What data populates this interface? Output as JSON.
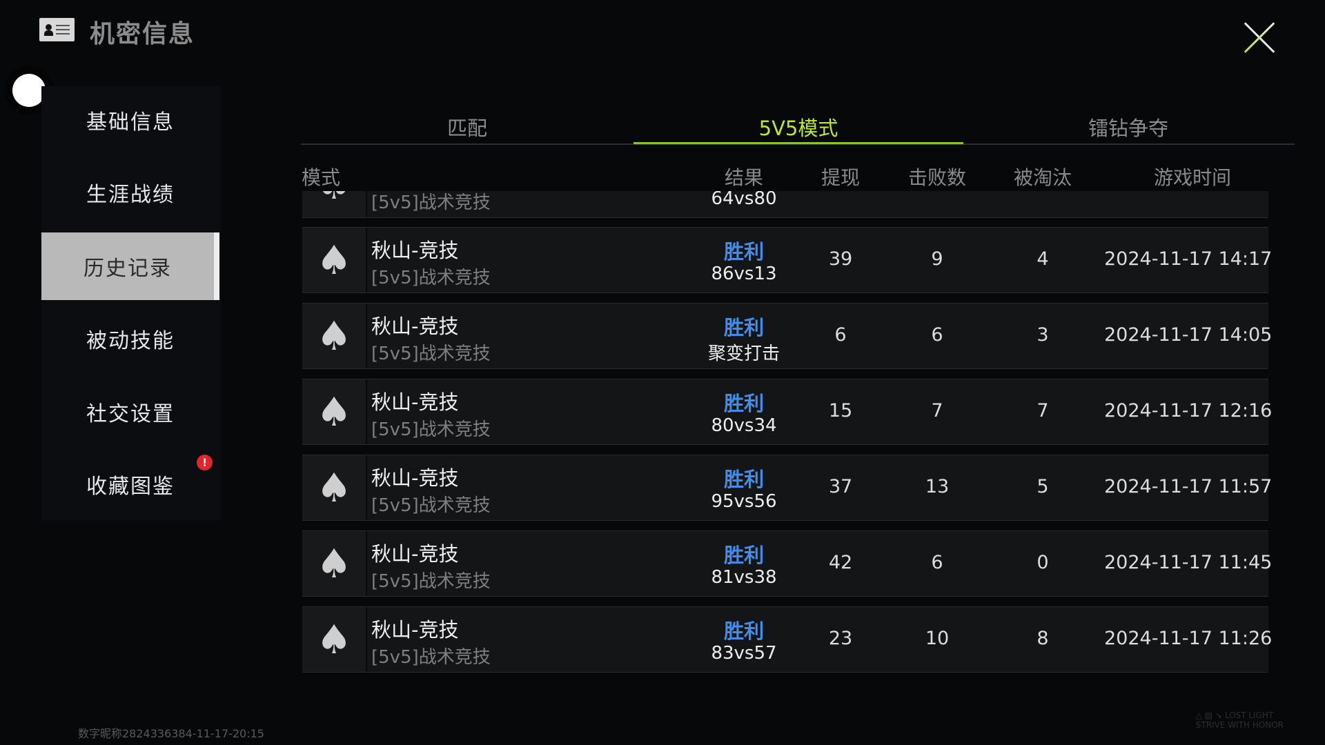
{
  "header": {
    "title": "机密信息",
    "icon": "id-card-icon",
    "close_icon": "close-icon"
  },
  "sidebar": {
    "items": [
      {
        "label": "基础信息"
      },
      {
        "label": "生涯战绩"
      },
      {
        "label": "历史记录",
        "selected": true
      },
      {
        "label": "被动技能"
      },
      {
        "label": "社交设置"
      },
      {
        "label": "收藏图鉴",
        "badge": "!"
      }
    ]
  },
  "tabs": [
    {
      "label": "匹配"
    },
    {
      "label": "5V5模式",
      "selected": true
    },
    {
      "label": "镭钻争夺"
    }
  ],
  "colors": {
    "accent": "#b9ea2c",
    "win": "#3e8ef0",
    "badge": "#e0262a"
  },
  "table": {
    "headers": {
      "mode": "模式",
      "result": "结果",
      "cashout": "提现",
      "kills": "击败数",
      "eliminated": "被淘汰",
      "time": "游戏时间"
    },
    "partial_row": {
      "sub": "[5v5]战术竞技",
      "score": "64vs80"
    },
    "rows": [
      {
        "map": "秋山-竞技",
        "mode": "[5v5]战术竞技",
        "result": "胜利",
        "score": "86vs13",
        "cashout": "39",
        "kills": "9",
        "eliminated": "4",
        "time": "2024-11-17 14:17:28"
      },
      {
        "map": "秋山-竞技",
        "mode": "[5v5]战术竞技",
        "result": "胜利",
        "score": "聚变打击",
        "cashout": "6",
        "kills": "6",
        "eliminated": "3",
        "time": "2024-11-17 14:05:16"
      },
      {
        "map": "秋山-竞技",
        "mode": "[5v5]战术竞技",
        "result": "胜利",
        "score": "80vs34",
        "cashout": "15",
        "kills": "7",
        "eliminated": "7",
        "time": "2024-11-17 12:16:41"
      },
      {
        "map": "秋山-竞技",
        "mode": "[5v5]战术竞技",
        "result": "胜利",
        "score": "95vs56",
        "cashout": "37",
        "kills": "13",
        "eliminated": "5",
        "time": "2024-11-17 11:57:45"
      },
      {
        "map": "秋山-竞技",
        "mode": "[5v5]战术竞技",
        "result": "胜利",
        "score": "81vs38",
        "cashout": "42",
        "kills": "6",
        "eliminated": "0",
        "time": "2024-11-17 11:45:02"
      },
      {
        "map": "秋山-竞技",
        "mode": "[5v5]战术竞技",
        "result": "胜利",
        "score": "83vs57",
        "cashout": "23",
        "kills": "10",
        "eliminated": "8",
        "time": "2024-11-17 11:26:29"
      }
    ]
  },
  "footer": {
    "watermark": "数字昵称2824336384-11-17-20:15",
    "brand": "LOST LIGHT\nSTRIVE WITH HONOR"
  }
}
